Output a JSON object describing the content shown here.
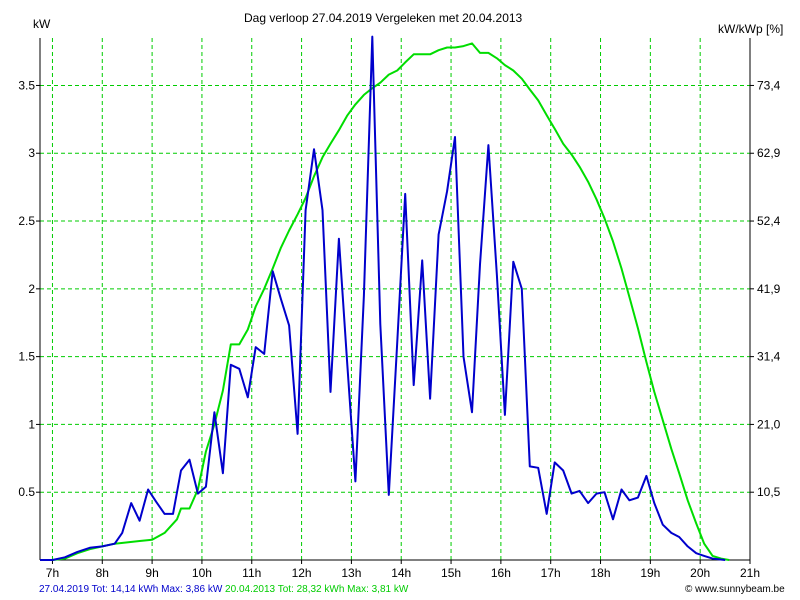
{
  "chart_data": {
    "type": "line",
    "title": "Dag  verloop 27.04.2019    Vergeleken met 20.04.2013",
    "ylabel_left": "kW",
    "ylabel_right": "kW/kWp [%]",
    "x_unit": "hour",
    "xlim": [
      6.75,
      21
    ],
    "ylim_left": [
      0,
      3.85
    ],
    "x_ticks": [
      7,
      8,
      9,
      10,
      11,
      12,
      13,
      14,
      15,
      16,
      17,
      18,
      19,
      20,
      21
    ],
    "x_tick_labels": [
      "7h",
      "8h",
      "9h",
      "10h",
      "11h",
      "12h",
      "13h",
      "14h",
      "15h",
      "16h",
      "17h",
      "18h",
      "19h",
      "20h",
      "21h"
    ],
    "y_ticks_left": [
      0.5,
      1,
      1.5,
      2,
      2.5,
      3,
      3.5
    ],
    "y_tick_labels_left": [
      "0.5",
      "1",
      "1.5",
      "2",
      "2.5",
      "3",
      "3.5"
    ],
    "y_tick_labels_right": [
      "10,5",
      "21,0",
      "31,4",
      "41,9",
      "52,4",
      "62,9",
      "73,4"
    ],
    "grid": true,
    "series": [
      {
        "color": "#0000cc",
        "points": [
          [
            6.75,
            0
          ],
          [
            7.0,
            0
          ],
          [
            7.25,
            0.02
          ],
          [
            7.5,
            0.06
          ],
          [
            7.75,
            0.09
          ],
          [
            8.0,
            0.1
          ],
          [
            8.25,
            0.12
          ],
          [
            8.4,
            0.2
          ],
          [
            8.58,
            0.42
          ],
          [
            8.75,
            0.29
          ],
          [
            8.92,
            0.52
          ],
          [
            9.08,
            0.43
          ],
          [
            9.25,
            0.34
          ],
          [
            9.42,
            0.34
          ],
          [
            9.58,
            0.66
          ],
          [
            9.75,
            0.74
          ],
          [
            9.92,
            0.49
          ],
          [
            10.08,
            0.54
          ],
          [
            10.25,
            1.09
          ],
          [
            10.42,
            0.64
          ],
          [
            10.58,
            1.44
          ],
          [
            10.75,
            1.41
          ],
          [
            10.92,
            1.2
          ],
          [
            11.08,
            1.57
          ],
          [
            11.25,
            1.52
          ],
          [
            11.42,
            2.13
          ],
          [
            11.58,
            1.93
          ],
          [
            11.75,
            1.73
          ],
          [
            11.92,
            0.93
          ],
          [
            12.08,
            2.58
          ],
          [
            12.25,
            3.03
          ],
          [
            12.42,
            2.58
          ],
          [
            12.58,
            1.24
          ],
          [
            12.75,
            2.37
          ],
          [
            12.92,
            1.43
          ],
          [
            13.08,
            0.58
          ],
          [
            13.25,
            1.95
          ],
          [
            13.42,
            3.86
          ],
          [
            13.58,
            1.74
          ],
          [
            13.75,
            0.48
          ],
          [
            13.92,
            1.6
          ],
          [
            14.08,
            2.7
          ],
          [
            14.25,
            1.29
          ],
          [
            14.42,
            2.21
          ],
          [
            14.58,
            1.19
          ],
          [
            14.75,
            2.4
          ],
          [
            14.92,
            2.72
          ],
          [
            15.08,
            3.12
          ],
          [
            15.25,
            1.5
          ],
          [
            15.42,
            1.09
          ],
          [
            15.58,
            2.18
          ],
          [
            15.75,
            3.06
          ],
          [
            15.92,
            2.1
          ],
          [
            16.08,
            1.07
          ],
          [
            16.25,
            2.2
          ],
          [
            16.42,
            2.0
          ],
          [
            16.58,
            0.69
          ],
          [
            16.75,
            0.68
          ],
          [
            16.92,
            0.34
          ],
          [
            17.08,
            0.72
          ],
          [
            17.25,
            0.66
          ],
          [
            17.42,
            0.49
          ],
          [
            17.58,
            0.51
          ],
          [
            17.75,
            0.42
          ],
          [
            17.92,
            0.49
          ],
          [
            18.08,
            0.5
          ],
          [
            18.25,
            0.3
          ],
          [
            18.42,
            0.52
          ],
          [
            18.58,
            0.44
          ],
          [
            18.75,
            0.46
          ],
          [
            18.92,
            0.62
          ],
          [
            19.08,
            0.42
          ],
          [
            19.25,
            0.26
          ],
          [
            19.42,
            0.2
          ],
          [
            19.58,
            0.17
          ],
          [
            19.75,
            0.1
          ],
          [
            19.92,
            0.05
          ],
          [
            20.08,
            0.03
          ],
          [
            20.25,
            0.01
          ],
          [
            20.5,
            0
          ]
        ]
      },
      {
        "color": "#00dd00",
        "points": [
          [
            6.75,
            0
          ],
          [
            7.0,
            0
          ],
          [
            7.25,
            0.01
          ],
          [
            7.5,
            0.05
          ],
          [
            7.75,
            0.08
          ],
          [
            8.0,
            0.1
          ],
          [
            8.25,
            0.12
          ],
          [
            8.5,
            0.13
          ],
          [
            8.75,
            0.14
          ],
          [
            9.0,
            0.15
          ],
          [
            9.25,
            0.2
          ],
          [
            9.5,
            0.3
          ],
          [
            9.58,
            0.38
          ],
          [
            9.75,
            0.38
          ],
          [
            9.92,
            0.52
          ],
          [
            10.08,
            0.8
          ],
          [
            10.25,
            1.0
          ],
          [
            10.42,
            1.25
          ],
          [
            10.58,
            1.59
          ],
          [
            10.75,
            1.59
          ],
          [
            10.92,
            1.7
          ],
          [
            11.08,
            1.87
          ],
          [
            11.25,
            2.0
          ],
          [
            11.42,
            2.15
          ],
          [
            11.58,
            2.3
          ],
          [
            11.75,
            2.43
          ],
          [
            11.92,
            2.55
          ],
          [
            12.08,
            2.67
          ],
          [
            12.25,
            2.83
          ],
          [
            12.42,
            2.97
          ],
          [
            12.58,
            3.07
          ],
          [
            12.75,
            3.17
          ],
          [
            12.92,
            3.28
          ],
          [
            13.08,
            3.36
          ],
          [
            13.25,
            3.43
          ],
          [
            13.42,
            3.48
          ],
          [
            13.58,
            3.52
          ],
          [
            13.75,
            3.58
          ],
          [
            13.92,
            3.61
          ],
          [
            14.08,
            3.67
          ],
          [
            14.25,
            3.73
          ],
          [
            14.42,
            3.73
          ],
          [
            14.58,
            3.73
          ],
          [
            14.75,
            3.76
          ],
          [
            14.92,
            3.78
          ],
          [
            15.08,
            3.78
          ],
          [
            15.25,
            3.79
          ],
          [
            15.42,
            3.81
          ],
          [
            15.58,
            3.74
          ],
          [
            15.75,
            3.74
          ],
          [
            15.92,
            3.7
          ],
          [
            16.08,
            3.65
          ],
          [
            16.25,
            3.61
          ],
          [
            16.42,
            3.55
          ],
          [
            16.58,
            3.47
          ],
          [
            16.75,
            3.39
          ],
          [
            16.92,
            3.28
          ],
          [
            17.08,
            3.18
          ],
          [
            17.25,
            3.07
          ],
          [
            17.42,
            2.99
          ],
          [
            17.58,
            2.9
          ],
          [
            17.75,
            2.79
          ],
          [
            17.92,
            2.66
          ],
          [
            18.08,
            2.52
          ],
          [
            18.25,
            2.35
          ],
          [
            18.42,
            2.15
          ],
          [
            18.58,
            1.94
          ],
          [
            18.75,
            1.71
          ],
          [
            18.92,
            1.46
          ],
          [
            19.08,
            1.24
          ],
          [
            19.25,
            1.03
          ],
          [
            19.42,
            0.82
          ],
          [
            19.58,
            0.64
          ],
          [
            19.75,
            0.44
          ],
          [
            19.92,
            0.27
          ],
          [
            20.08,
            0.12
          ],
          [
            20.25,
            0.03
          ],
          [
            20.42,
            0.01
          ],
          [
            20.58,
            0
          ]
        ]
      }
    ]
  },
  "legend": {
    "series1_text": "27.04.2019 Tot: 14,14 kWh Max: 3,86 kW",
    "series1_color": "#0000cc",
    "series2_text": "20.04.2013 Tot: 28,32 kWh Max: 3,81 kW",
    "series2_color": "#00cc00"
  },
  "credit": "www.sunnybeam.be",
  "credit_icon": "copyright-icon"
}
